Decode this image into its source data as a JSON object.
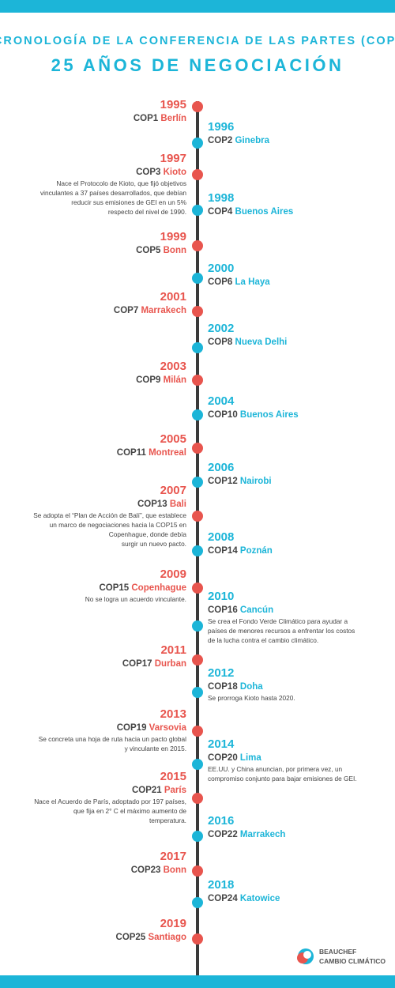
{
  "header": {
    "title": "CRONOLOGÍA DE LA CONFERENCIA DE LAS PARTES (COP)",
    "subtitle": "25 AÑOS DE NEGOCIACIÓN"
  },
  "events": [
    {
      "year": "1995",
      "cop": "COP1",
      "city": "Berlín"
    },
    {
      "year": "1996",
      "cop": "COP2",
      "city": "Ginebra"
    },
    {
      "year": "1997",
      "cop": "COP3",
      "city": "Kioto",
      "description": [
        "Nace el Protocolo de Kioto, que fijó objetivos",
        "vinculantes a 37 países desarrollados, que debían",
        "reducir sus emisiones de GEI en un 5%",
        "respecto del nivel de 1990."
      ]
    },
    {
      "year": "1998",
      "cop": "COP4",
      "city": "Buenos Aires"
    },
    {
      "year": "1999",
      "cop": "COP5",
      "city": "Bonn"
    },
    {
      "year": "2000",
      "cop": "COP6",
      "city": "La Haya"
    },
    {
      "year": "2001",
      "cop": "COP7",
      "city": "Marrakech"
    },
    {
      "year": "2002",
      "cop": "COP8",
      "city": "Nueva Delhi"
    },
    {
      "year": "2003",
      "cop": "COP9",
      "city": "Milán"
    },
    {
      "year": "2004",
      "cop": "COP10",
      "city": "Buenos Aires"
    },
    {
      "year": "2005",
      "cop": "COP11",
      "city": "Montreal"
    },
    {
      "year": "2006",
      "cop": "COP12",
      "city": "Nairobi"
    },
    {
      "year": "2007",
      "cop": "COP13",
      "city": "Bali",
      "description": [
        "Se adopta el “Plan de Acción de Balí”, que establece",
        "un marco de negociaciones hacia la COP15 en",
        "Copenhague, donde debía",
        "surgir un nuevo pacto."
      ]
    },
    {
      "year": "2008",
      "cop": "COP14",
      "city": "Poznán"
    },
    {
      "year": "2009",
      "cop": "COP15",
      "city": "Copenhague",
      "description": [
        "No se logra un acuerdo vinculante."
      ]
    },
    {
      "year": "2010",
      "cop": "COP16",
      "city": "Cancún",
      "description": [
        "Se crea el Fondo Verde Climático para ayudar a",
        "países de menores recursos a enfrentar los costos",
        "de la lucha contra el cambio climático."
      ]
    },
    {
      "year": "2011",
      "cop": "COP17",
      "city": "Durban"
    },
    {
      "year": "2012",
      "cop": "COP18",
      "city": "Doha",
      "description": [
        "Se prorroga Kioto hasta 2020."
      ]
    },
    {
      "year": "2013",
      "cop": "COP19",
      "city": "Varsovia",
      "description": [
        "Se concreta una hoja de ruta hacia un pacto global",
        "y vinculante en 2015."
      ]
    },
    {
      "year": "2014",
      "cop": "COP20",
      "city": "Lima",
      "description": [
        "EE.UU. y China anuncian, por primera vez, un",
        "compromiso conjunto para bajar emisiones de GEI."
      ]
    },
    {
      "year": "2015",
      "cop": "COP21",
      "city": "París",
      "description": [
        "Nace el Acuerdo de París, adoptado por 197 países,",
        "que fija en 2° C el máximo aumento de",
        "temperatura."
      ]
    },
    {
      "year": "2016",
      "cop": "COP22",
      "city": "Marrakech"
    },
    {
      "year": "2017",
      "cop": "COP23",
      "city": "Bonn"
    },
    {
      "year": "2018",
      "cop": "COP24",
      "city": "Katowice"
    },
    {
      "year": "2019",
      "cop": "COP25",
      "city": "Santiago"
    }
  ],
  "logo": {
    "line1": "BEAUCHEF",
    "line2": "CAMBIO CLIMÁTICO"
  }
}
